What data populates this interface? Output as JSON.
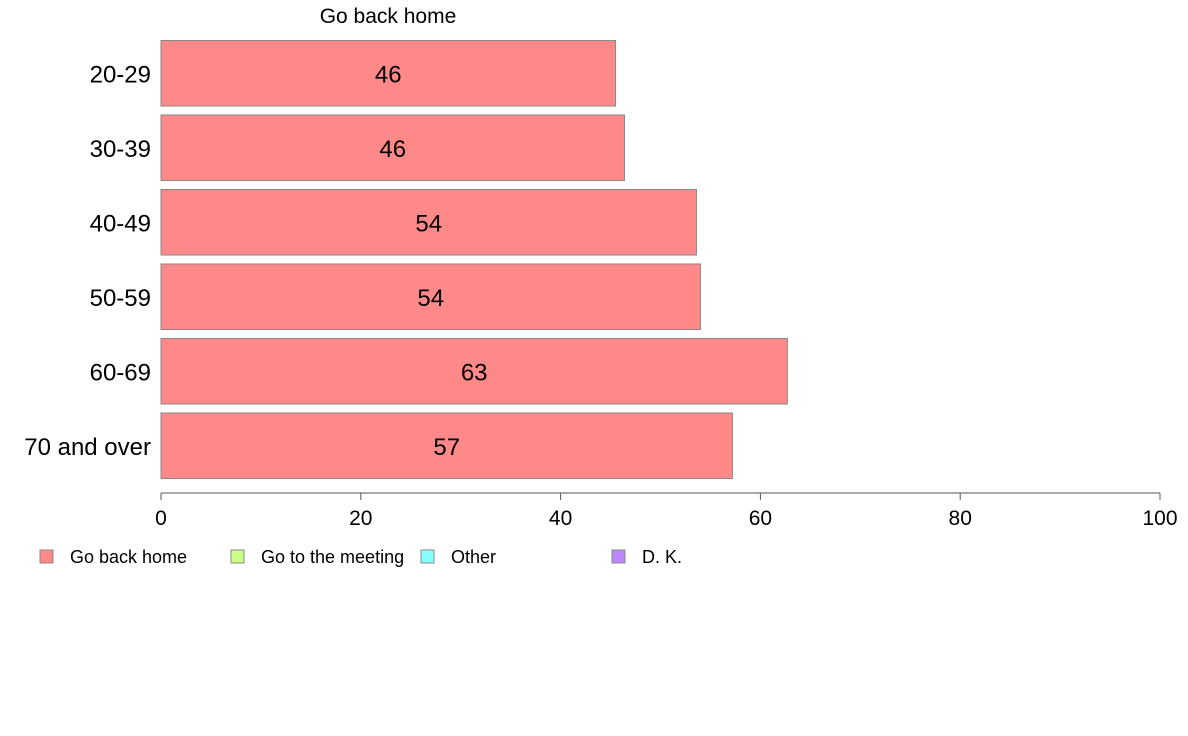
{
  "chart_data": {
    "type": "bar",
    "orientation": "horizontal",
    "title": "Go back home",
    "categories": [
      "20-29",
      "30-39",
      "40-49",
      "50-59",
      "60-69",
      "70 and over"
    ],
    "series": [
      {
        "name": "Go back home",
        "color": "#ff8888",
        "values": [
          45.5,
          46.4,
          53.6,
          54.0,
          62.7,
          57.2
        ],
        "labels": [
          "46",
          "46",
          "54",
          "54",
          "63",
          "57"
        ]
      }
    ],
    "xlim": [
      0,
      100
    ],
    "xticks": [
      "0",
      "20",
      "40",
      "60",
      "80",
      "100"
    ],
    "grid": false,
    "legend": {
      "placement": "bottom-left",
      "items": [
        {
          "label": "Go back home",
          "color": "#ff8888"
        },
        {
          "label": "Go to the meeting",
          "color": "#ccff88"
        },
        {
          "label": "Other",
          "color": "#88ffff"
        },
        {
          "label": "D. K.",
          "color": "#bb88ff"
        }
      ]
    }
  }
}
